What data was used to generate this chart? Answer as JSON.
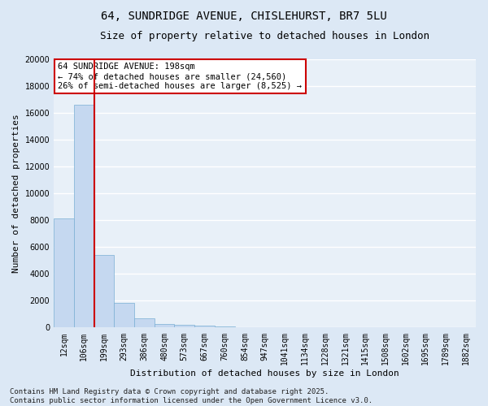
{
  "title_line1": "64, SUNDRIDGE AVENUE, CHISLEHURST, BR7 5LU",
  "title_line2": "Size of property relative to detached houses in London",
  "xlabel": "Distribution of detached houses by size in London",
  "ylabel": "Number of detached properties",
  "bar_labels": [
    "12sqm",
    "106sqm",
    "199sqm",
    "293sqm",
    "386sqm",
    "480sqm",
    "573sqm",
    "667sqm",
    "760sqm",
    "854sqm",
    "947sqm",
    "1041sqm",
    "1134sqm",
    "1228sqm",
    "1321sqm",
    "1415sqm",
    "1508sqm",
    "1602sqm",
    "1695sqm",
    "1789sqm",
    "1882sqm"
  ],
  "bar_values": [
    8100,
    16600,
    5400,
    1850,
    700,
    280,
    200,
    150,
    100,
    0,
    0,
    0,
    0,
    0,
    0,
    0,
    0,
    0,
    0,
    0,
    0
  ],
  "bar_color": "#c5d8f0",
  "bar_edge_color": "#7aafd4",
  "highlight_line_color": "#cc0000",
  "ylim": [
    0,
    20000
  ],
  "yticks": [
    0,
    2000,
    4000,
    6000,
    8000,
    10000,
    12000,
    14000,
    16000,
    18000,
    20000
  ],
  "annotation_text": "64 SUNDRIDGE AVENUE: 198sqm\n← 74% of detached houses are smaller (24,560)\n26% of semi-detached houses are larger (8,525) →",
  "annotation_box_color": "#cc0000",
  "annotation_bg": "#ffffff",
  "footer_line1": "Contains HM Land Registry data © Crown copyright and database right 2025.",
  "footer_line2": "Contains public sector information licensed under the Open Government Licence v3.0.",
  "bg_color": "#dce8f5",
  "plot_bg_color": "#e8f0f8",
  "grid_color": "#ffffff",
  "title_fontsize": 10,
  "subtitle_fontsize": 9,
  "axis_label_fontsize": 8,
  "tick_fontsize": 7,
  "annotation_fontsize": 7.5,
  "footer_fontsize": 6.5
}
